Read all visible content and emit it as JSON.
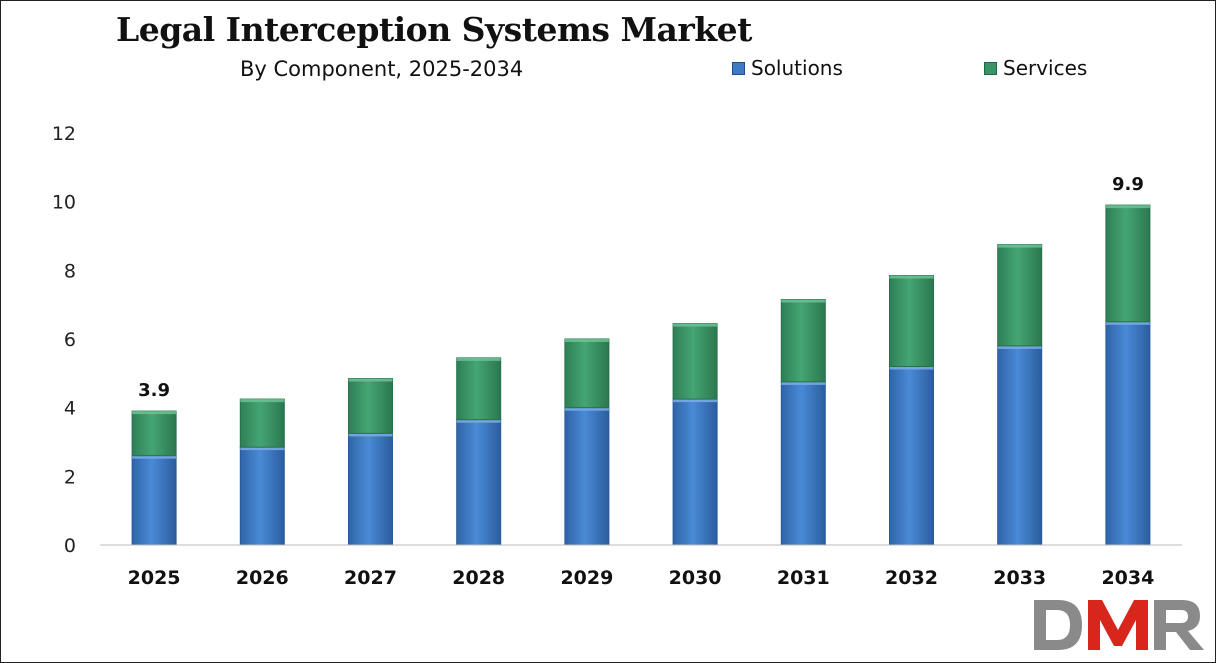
{
  "chart_data": {
    "type": "bar",
    "stacked": true,
    "title": "Legal Interception Systems Market",
    "subtitle": "By Component, 2025-2034",
    "categories": [
      "2025",
      "2026",
      "2027",
      "2028",
      "2029",
      "2030",
      "2031",
      "2032",
      "2033",
      "2034"
    ],
    "series": [
      {
        "name": "Solutions",
        "color": "#3e7bc4",
        "values": [
          2.6,
          2.85,
          3.25,
          3.65,
          4.0,
          4.25,
          4.75,
          5.2,
          5.8,
          6.5
        ]
      },
      {
        "name": "Services",
        "color": "#3a9467",
        "values": [
          1.3,
          1.4,
          1.6,
          1.8,
          2.0,
          2.2,
          2.4,
          2.65,
          2.95,
          3.4
        ]
      }
    ],
    "yticks": [
      "0",
      "2",
      "4",
      "6",
      "8",
      "10",
      "12"
    ],
    "ylim": [
      0,
      12
    ],
    "data_labels": [
      {
        "category": "2025",
        "text": "3.9"
      },
      {
        "category": "2034",
        "text": "9.9"
      }
    ],
    "xlabel": "",
    "ylabel": "",
    "grid": false,
    "legend": "top-right"
  },
  "logo": {
    "text": "DMR",
    "colors": [
      "#8a8a8a",
      "#d9261c"
    ]
  }
}
